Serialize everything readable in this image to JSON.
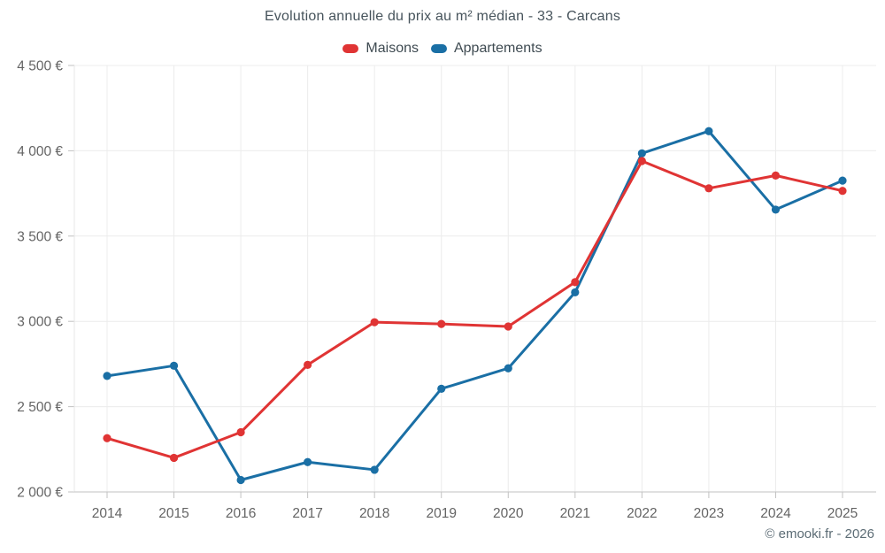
{
  "header": {
    "title": "Evolution annuelle du prix au m² médian - 33 - Carcans"
  },
  "legend": {
    "items": [
      {
        "label": "Maisons",
        "color": "#e03434"
      },
      {
        "label": "Appartements",
        "color": "#1a6fa5"
      }
    ]
  },
  "chart_data": {
    "type": "line",
    "title": "Evolution annuelle du prix au m² médian - 33 - Carcans",
    "x": [
      "2014",
      "2015",
      "2016",
      "2017",
      "2018",
      "2019",
      "2020",
      "2021",
      "2022",
      "2023",
      "2024",
      "2025"
    ],
    "series": [
      {
        "name": "Maisons",
        "color": "#e03434",
        "values": [
          2315,
          2200,
          2350,
          2745,
          2995,
          2985,
          2970,
          3230,
          3940,
          3780,
          3855,
          3765
        ]
      },
      {
        "name": "Appartements",
        "color": "#1a6fa5",
        "values": [
          2680,
          2740,
          2070,
          2175,
          2130,
          2605,
          2725,
          3170,
          3985,
          4115,
          3655,
          3825
        ]
      }
    ],
    "ylim": [
      2000,
      4500
    ],
    "ytick_step": 500,
    "ytick_labels": [
      "2 000 €",
      "2 500 €",
      "3 000 €",
      "3 500 €",
      "4 000 €",
      "4 500 €"
    ],
    "xlabel": "",
    "ylabel": "",
    "grid": true,
    "legend_position": "top"
  },
  "footer": {
    "credit": "© emooki.fr - 2026"
  },
  "style_colors": {
    "grid": "#ececec",
    "plot_left_border": "#e7e7e7",
    "axis": "#c2c2c2",
    "tick_text": "#646464",
    "title_text": "#47545c",
    "footer_text": "#5c6c75",
    "background": "#ffffff"
  }
}
